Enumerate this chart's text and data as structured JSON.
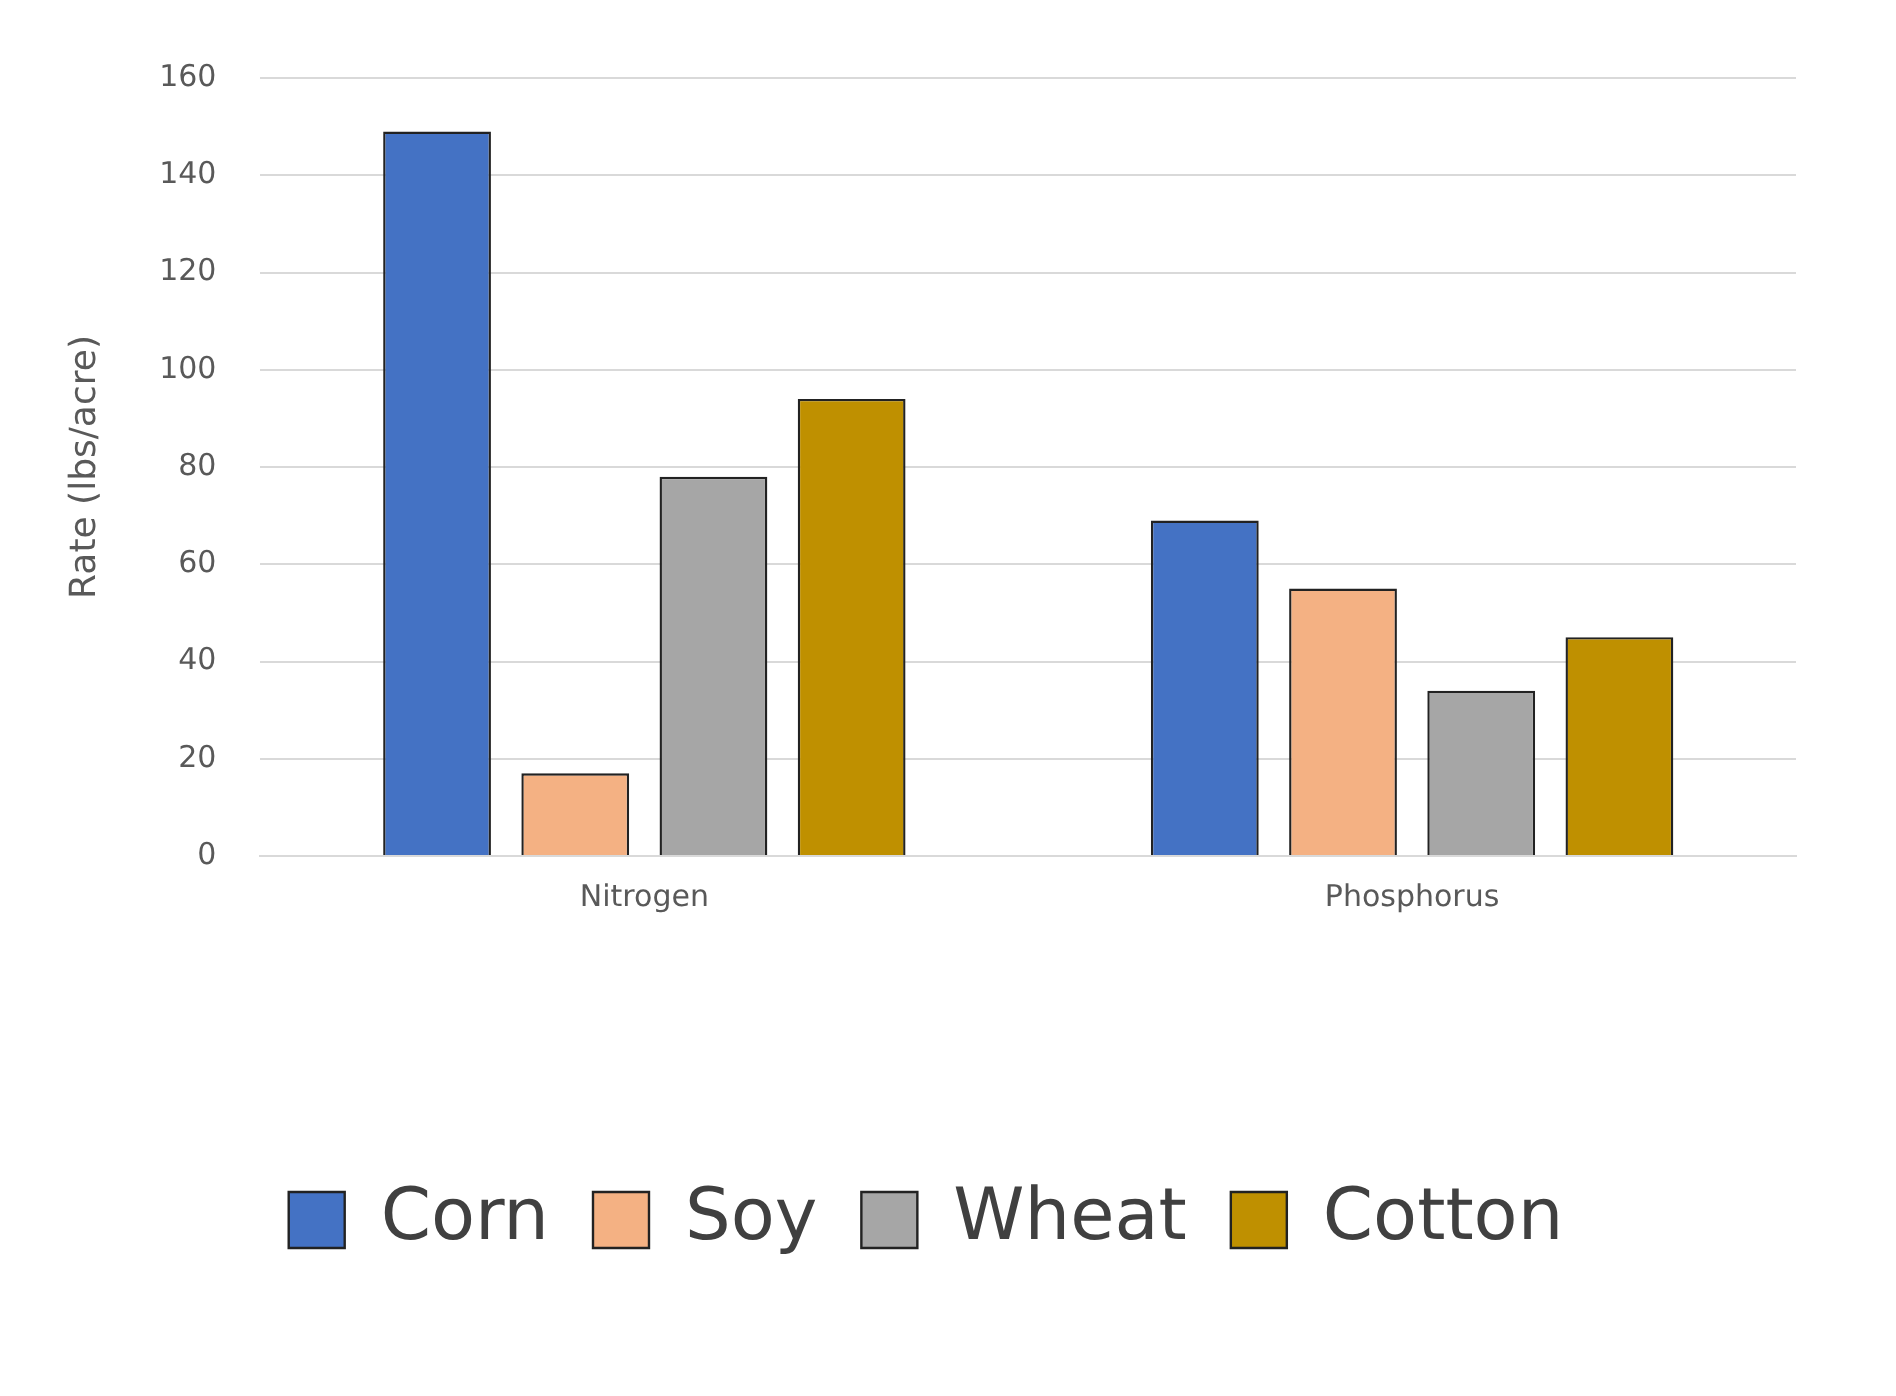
{
  "chart_data": {
    "type": "bar",
    "ylabel": "Rate (lbs/acre)",
    "categories": [
      "Nitrogen",
      "Phosphorus"
    ],
    "series": [
      {
        "name": "Corn",
        "color": "#4472c4",
        "values": [
          149,
          69
        ]
      },
      {
        "name": "Soy",
        "color": "#f4b183",
        "values": [
          17,
          55
        ]
      },
      {
        "name": "Wheat",
        "color": "#a6a6a6",
        "values": [
          78,
          34
        ]
      },
      {
        "name": "Cotton",
        "color": "#bf9000",
        "values": [
          94,
          45
        ]
      }
    ],
    "ylim": [
      0,
      160
    ],
    "yticks": [
      0,
      20,
      40,
      60,
      80,
      100,
      120,
      140,
      160
    ],
    "grid": "y",
    "legend": "bottom"
  }
}
